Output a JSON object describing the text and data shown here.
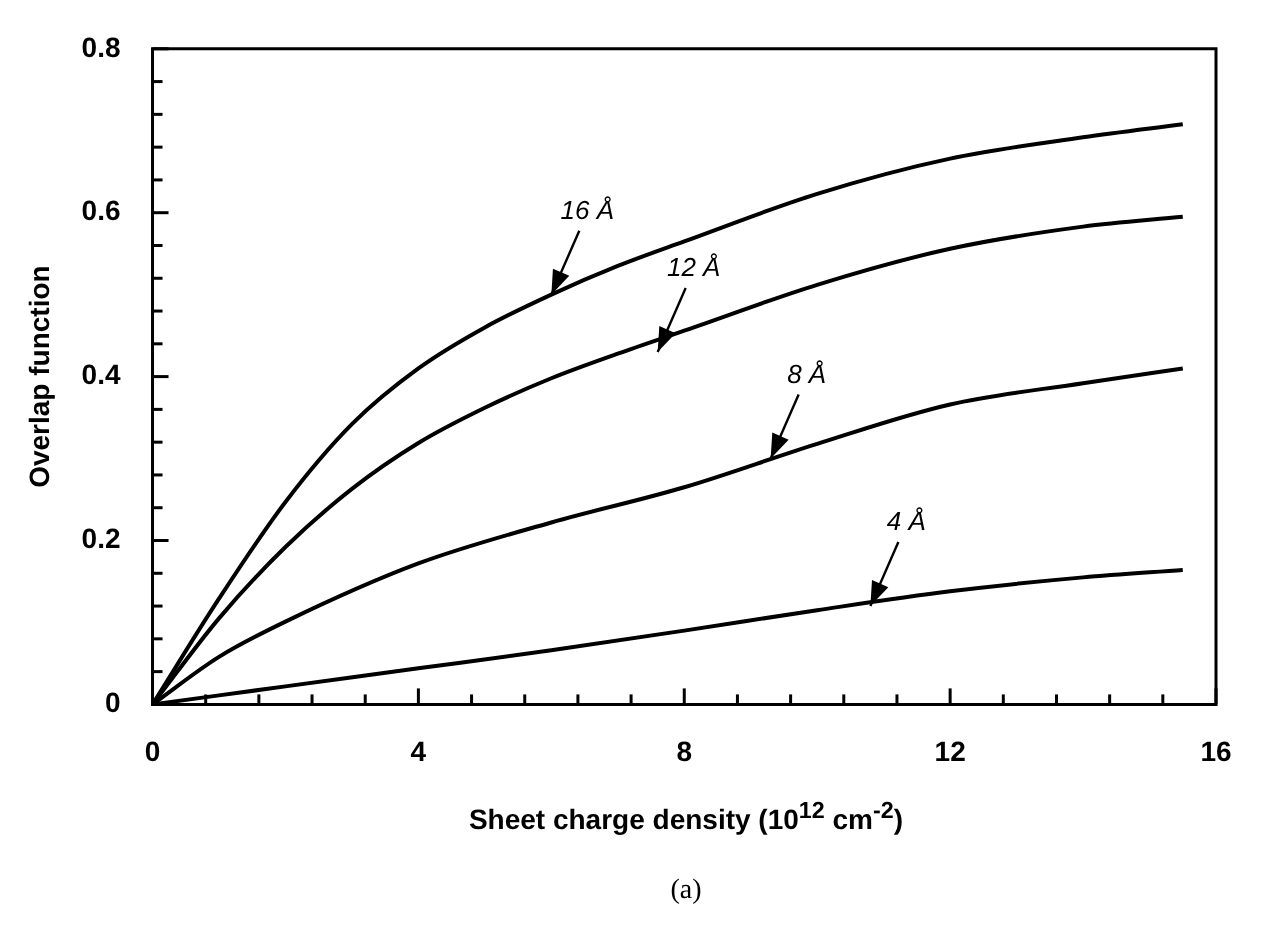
{
  "chart_data": {
    "type": "line",
    "xlabel": "Sheet charge density (10$^{12}$ cm$^{-2}$)",
    "ylabel": "Overlap function",
    "xlim": [
      0,
      16
    ],
    "ylim": [
      0,
      0.8
    ],
    "xticks": [
      0,
      {
        "value": 0.8,
        "label": null
      },
      {
        "value": 1.6,
        "label": null
      },
      {
        "value": 2.4,
        "label": null
      },
      {
        "value": 3.2,
        "label": null
      },
      4,
      {
        "value": 4.8,
        "label": null
      },
      {
        "value": 5.6,
        "label": null
      },
      {
        "value": 6.4,
        "label": null
      },
      {
        "value": 7.2,
        "label": null
      },
      8,
      {
        "value": 8.8,
        "label": null
      },
      {
        "value": 9.6,
        "label": null
      },
      {
        "value": 10.4,
        "label": null
      },
      {
        "value": 11.2,
        "label": null
      },
      12,
      {
        "value": 12.8,
        "label": null
      },
      {
        "value": 13.6,
        "label": null
      },
      {
        "value": 14.4,
        "label": null
      },
      {
        "value": 15.2,
        "label": null
      },
      16
    ],
    "yticks": [
      0,
      {
        "value": 0.04,
        "label": null
      },
      {
        "value": 0.08,
        "label": null
      },
      {
        "value": 0.12,
        "label": null
      },
      {
        "value": 0.16,
        "label": null
      },
      0.2,
      {
        "value": 0.24,
        "label": null
      },
      {
        "value": 0.28,
        "label": null
      },
      {
        "value": 0.32,
        "label": null
      },
      {
        "value": 0.36,
        "label": null
      },
      0.4,
      {
        "value": 0.44,
        "label": null
      },
      {
        "value": 0.48,
        "label": null
      },
      {
        "value": 0.52,
        "label": null
      },
      {
        "value": 0.56,
        "label": null
      },
      0.6,
      {
        "value": 0.64,
        "label": null
      },
      {
        "value": 0.68,
        "label": null
      },
      {
        "value": 0.72,
        "label": null
      },
      {
        "value": 0.76,
        "label": null
      },
      0.8
    ],
    "grid": false,
    "legend": false,
    "marker": "none",
    "line_style": "solid",
    "series": [
      {
        "color": "#000000",
        "x": [
          0,
          1,
          2,
          3,
          4,
          5,
          6,
          7,
          8,
          10,
          12,
          14,
          15.5
        ],
        "values": [
          0,
          0.129,
          0.247,
          0.342,
          0.41,
          0.46,
          0.5,
          0.535,
          0.565,
          0.623,
          0.666,
          0.692,
          0.708
        ]
      },
      {
        "color": "#000000",
        "x": [
          0,
          1,
          2,
          3,
          4,
          5,
          6,
          7,
          8,
          10,
          12,
          14,
          15.5
        ],
        "values": [
          0,
          0.105,
          0.192,
          0.263,
          0.319,
          0.362,
          0.398,
          0.428,
          0.456,
          0.512,
          0.556,
          0.583,
          0.595
        ]
      },
      {
        "color": "#000000",
        "x": [
          0,
          1,
          2,
          4,
          6,
          8,
          10,
          12,
          14,
          15.5
        ],
        "values": [
          0,
          0.058,
          0.101,
          0.172,
          0.222,
          0.265,
          0.318,
          0.366,
          0.392,
          0.41
        ]
      },
      {
        "color": "#000000",
        "x": [
          0,
          2,
          4,
          6,
          8,
          10,
          12,
          14,
          15.5
        ],
        "values": [
          0,
          0.022,
          0.044,
          0.066,
          0.09,
          0.115,
          0.138,
          0.155,
          0.164
        ]
      }
    ],
    "annotations": [
      {
        "text": "16 Å",
        "x": 6,
        "y": 0.5
      },
      {
        "text": "12 Å",
        "x": 7.6,
        "y": 0.43
      },
      {
        "text": "8 Å",
        "x": 9.3,
        "y": 0.3
      },
      {
        "text": "4 Å",
        "x": 10.8,
        "y": 0.12
      },
      "(a)"
    ]
  }
}
